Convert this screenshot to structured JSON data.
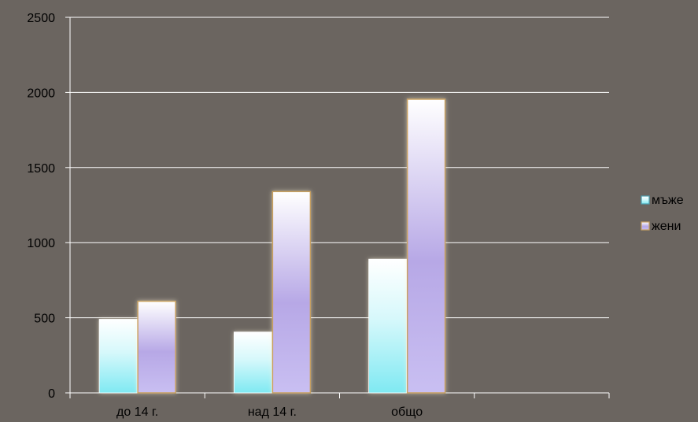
{
  "chart_data": {
    "type": "bar",
    "categories": [
      "до 14 г.",
      "над 14 г.",
      "общо",
      ""
    ],
    "series": [
      {
        "name": "мъже",
        "values": [
          490,
          405,
          890,
          null
        ],
        "color": "#7fe9f2"
      },
      {
        "name": "жени",
        "values": [
          610,
          1340,
          1955,
          null
        ],
        "color": "#b7a8e6"
      }
    ],
    "ylim": [
      0,
      2500
    ],
    "yticks": [
      0,
      500,
      1000,
      1500,
      2000,
      2500
    ],
    "grid": true,
    "legend": "right",
    "colors": {
      "background": "#6b6560",
      "gridline": "#ffffff",
      "bar_outline_women": "#c8a060"
    }
  }
}
